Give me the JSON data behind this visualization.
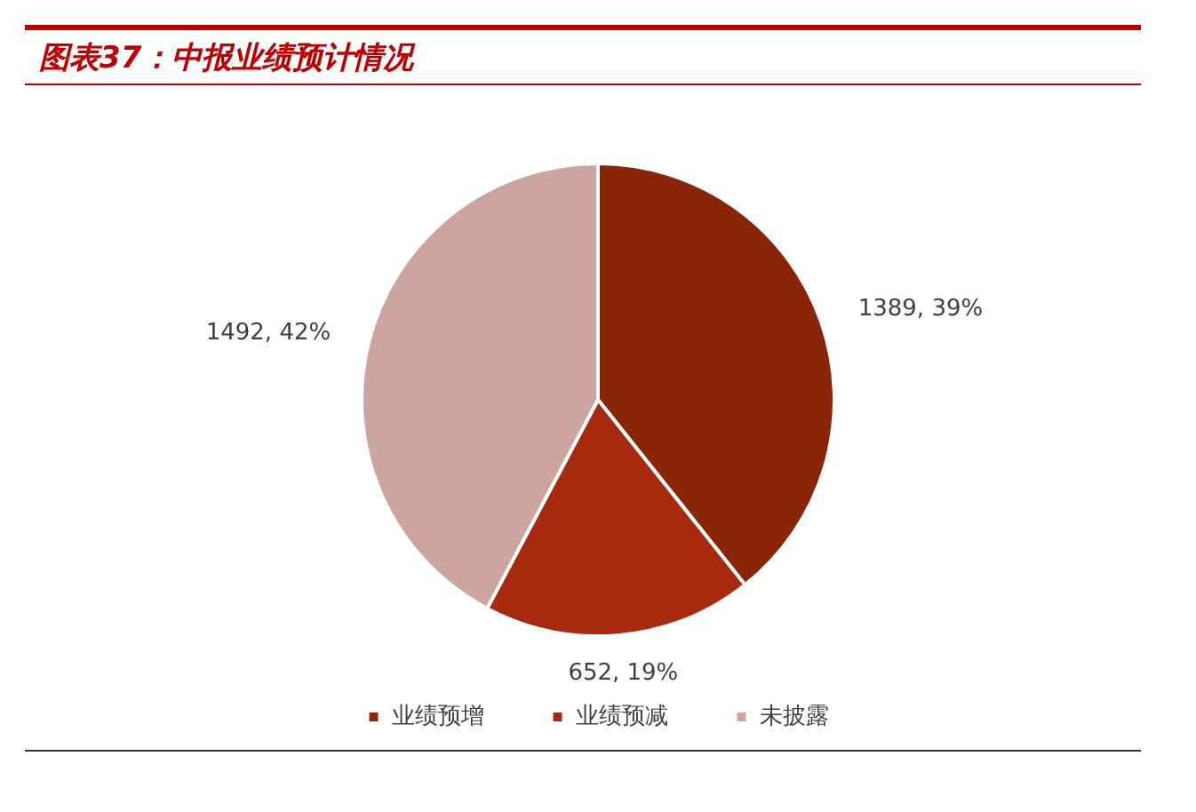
{
  "chart_data": {
    "type": "pie",
    "title": "图表37：中报业绩预计情况",
    "categories": [
      "业绩预增",
      "业绩预减",
      "未披露"
    ],
    "values": [
      1389,
      652,
      1492
    ],
    "colors": [
      "#8b2508",
      "#a52a0e",
      "#cda5a0"
    ],
    "value_labels": [
      "1389, 39%",
      "652, 19%",
      "1492, 42%"
    ],
    "legend": "bottom"
  }
}
